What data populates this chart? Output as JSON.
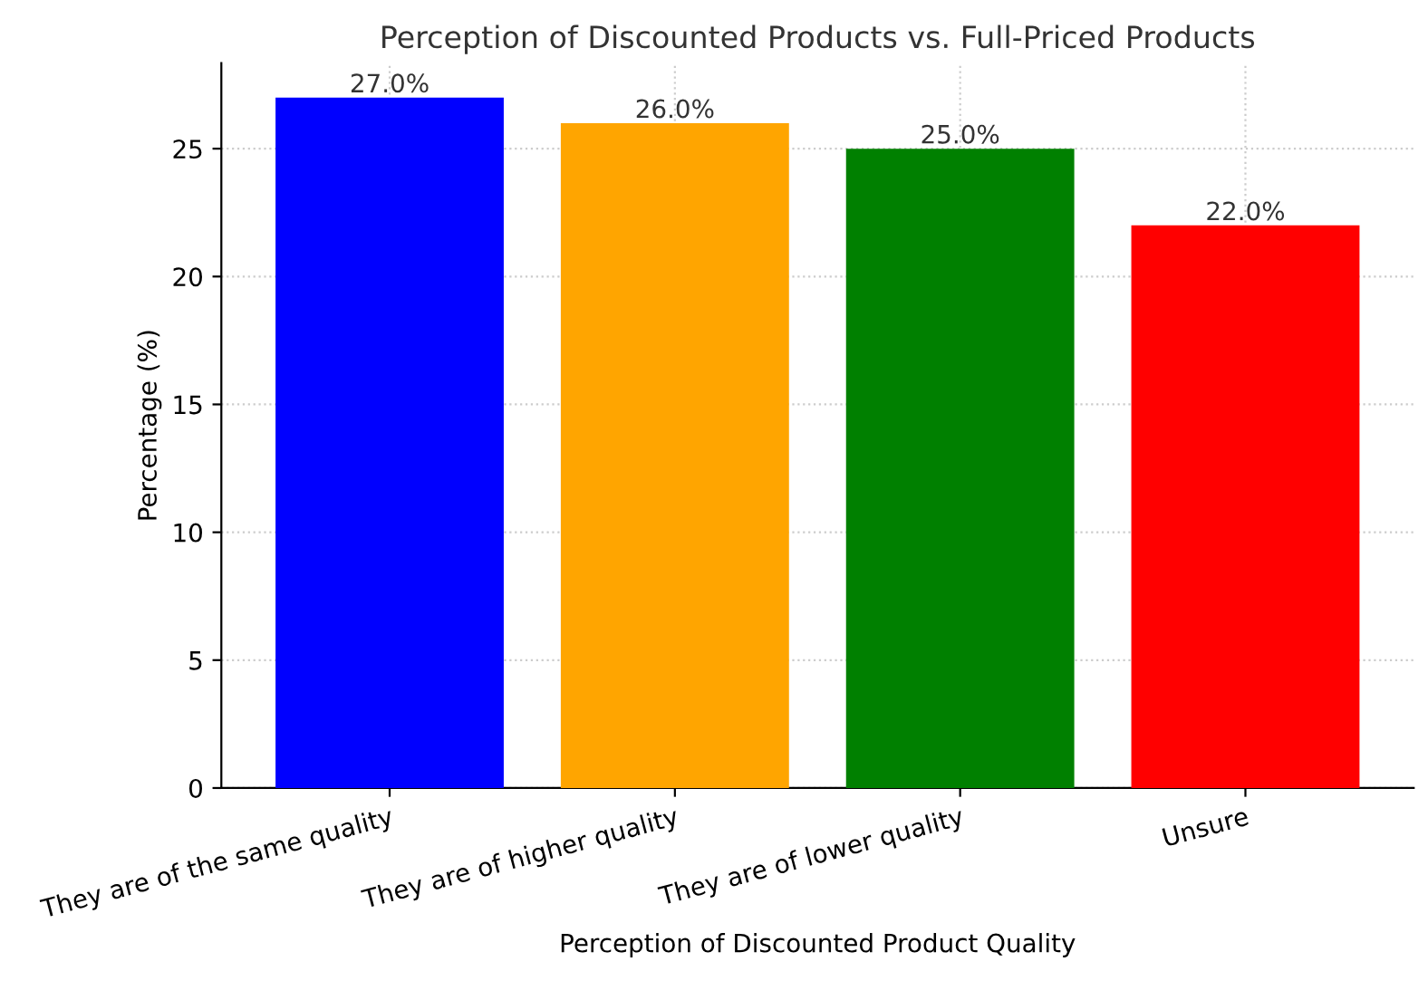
{
  "chart_data": {
    "type": "bar",
    "title": "Perception of Discounted Products vs. Full-Priced Products",
    "xlabel": "Perception of Discounted Product Quality",
    "ylabel": "Percentage (%)",
    "categories": [
      "They are of the same quality",
      "They are of higher quality",
      "They are of lower quality",
      "Unsure"
    ],
    "values": [
      27,
      26,
      25,
      22
    ],
    "colors": [
      "#0000ff",
      "#ffa500",
      "#008000",
      "#ff0000"
    ],
    "value_labels": [
      "27.0%",
      "26.0%",
      "25.0%",
      "22.0%"
    ],
    "ylim": [
      0,
      28.35
    ],
    "yticks": [
      0,
      5,
      10,
      15,
      20,
      25
    ],
    "grid": true
  }
}
